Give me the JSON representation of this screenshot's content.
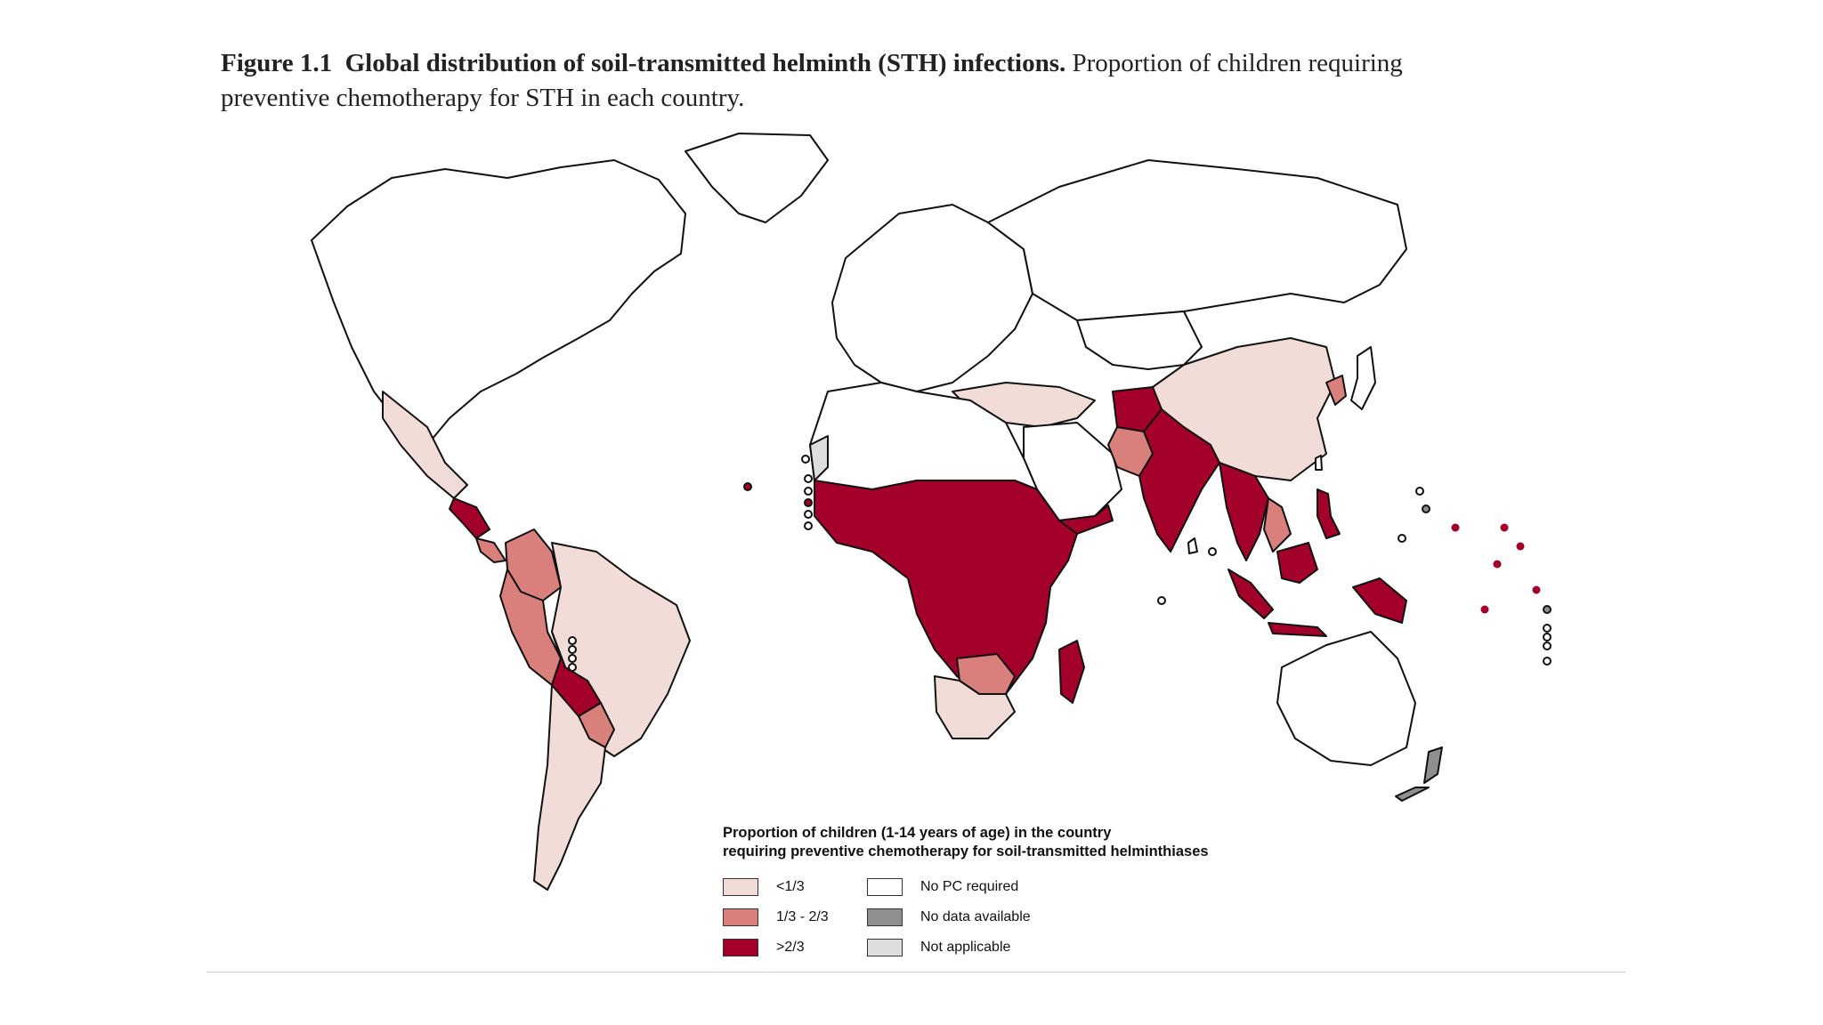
{
  "figure": {
    "label": "Figure 1.1",
    "title": "Global distribution of soil-transmitted helminth (STH) infections.",
    "subtitle": "Proportion of children requiring preventive chemotherapy for STH in each country."
  },
  "legend": {
    "title_line1": "Proportion of children (1-14 years of age) in the country",
    "title_line2": "requiring preventive chemotherapy for soil-transmitted helminthiases",
    "items": [
      {
        "label": "<1/3",
        "color": "#f2dcd8"
      },
      {
        "label": "1/3 - 2/3",
        "color": "#d97f7c"
      },
      {
        "label": ">2/3",
        "color": "#a3002a"
      },
      {
        "label": "No PC required",
        "color": "#ffffff"
      },
      {
        "label": "No data available",
        "color": "#8f8f8f"
      },
      {
        "label": "Not applicable",
        "color": "#dedede"
      }
    ]
  },
  "colors": {
    "low": "#f2dcd8",
    "mid": "#d97f7c",
    "high": "#a3002a",
    "none": "#ffffff",
    "nodata": "#8f8f8f",
    "na": "#dedede"
  }
}
